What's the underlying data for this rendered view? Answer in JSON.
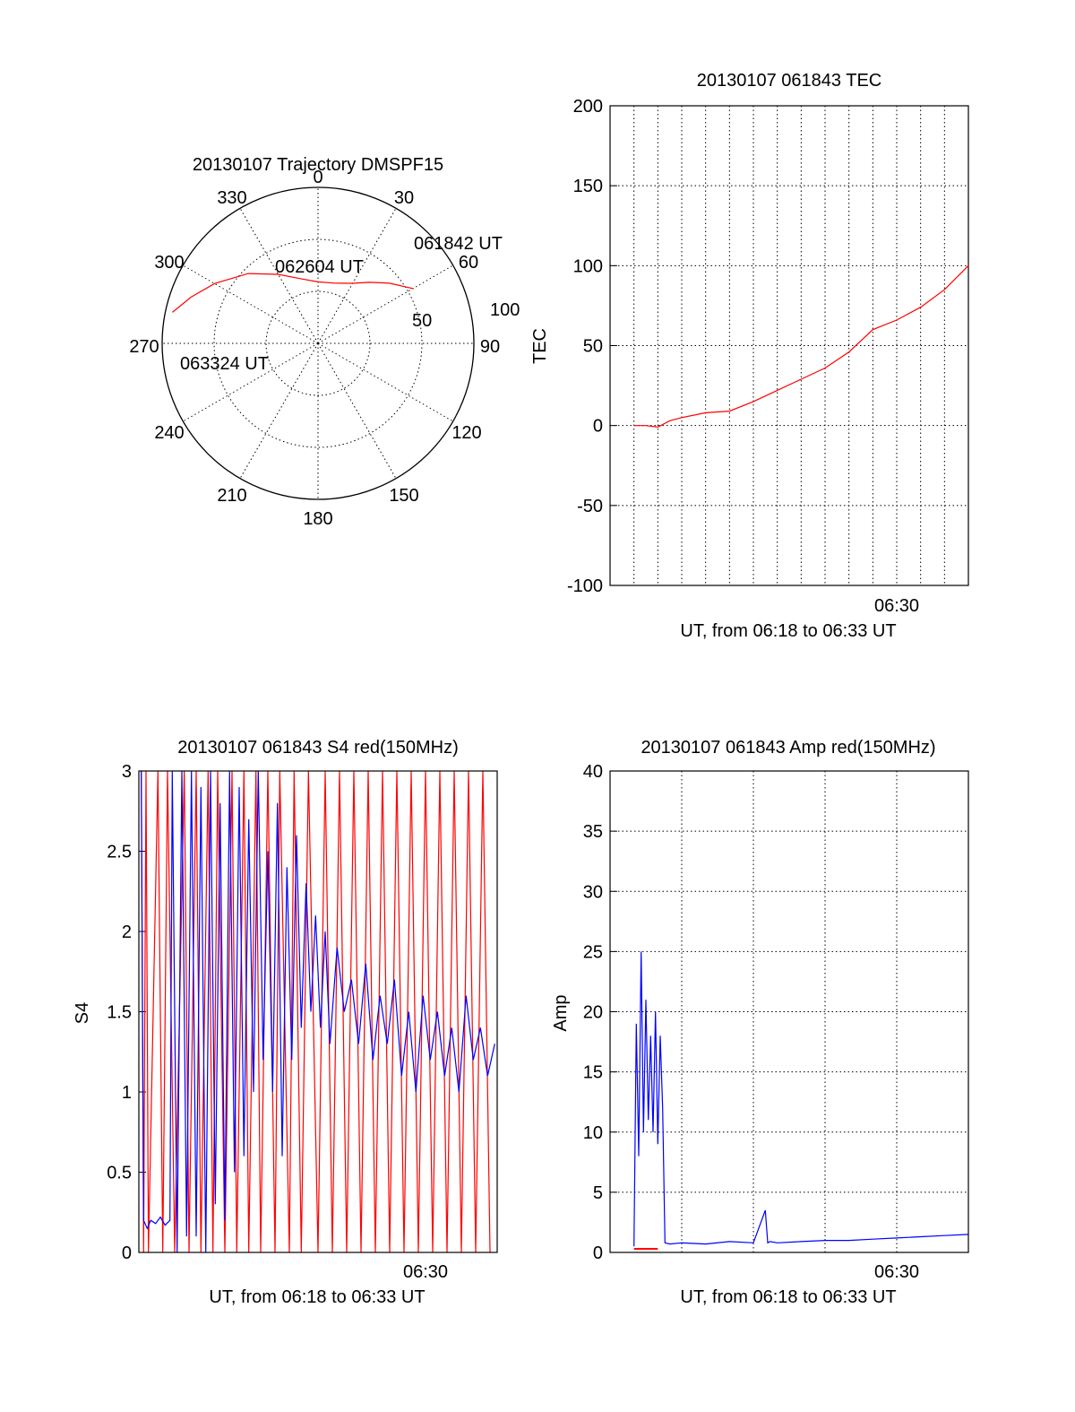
{
  "colors": {
    "trace_red": "#ff0000",
    "trace_blue": "#0000ff",
    "axis": "#000000",
    "grid": "#000000"
  },
  "chart_data": [
    {
      "type": "polar",
      "title": "20130107 Trajectory DMSPF15",
      "angle_labels": [
        "0",
        "30",
        "60",
        "90",
        "120",
        "150",
        "180",
        "210",
        "240",
        "270",
        "300",
        "330"
      ],
      "radial_labels": [
        "50",
        "100"
      ],
      "elevation_rings": [
        30,
        60,
        90
      ],
      "grid": true,
      "trajectory": {
        "color": "red",
        "points": [
          {
            "az": 60.3,
            "el": 26.4
          },
          {
            "az": 50.0,
            "el": 36.0
          },
          {
            "az": 40.0,
            "el": 44.0
          },
          {
            "az": 30.0,
            "el": 50.0
          },
          {
            "az": 15.0,
            "el": 54.0
          },
          {
            "az": 0.0,
            "el": 54.5
          },
          {
            "az": -14.0,
            "el": 51.7
          },
          {
            "az": -30.0,
            "el": 44.0
          },
          {
            "az": -45.0,
            "el": 33.0
          },
          {
            "az": -60.0,
            "el": 21.0
          },
          {
            "az": -70.0,
            "el": 12.0
          },
          {
            "az": -78.0,
            "el": 4.0
          }
        ],
        "markers": [
          {
            "label": "061842 UT",
            "az": 60.3,
            "el": 26.4
          },
          {
            "label": "062604 UT",
            "az": -14.0,
            "el": 51.7
          },
          {
            "label": "063324 UT",
            "az": -78.0,
            "el": 4.0
          }
        ]
      }
    },
    {
      "type": "line",
      "title": "20130107 061843 TEC",
      "xlabel": "UT, from 06:18 to 06:33 UT",
      "ylabel": "TEC",
      "x_tick_labels": [
        "06:30"
      ],
      "y_tick_labels": [
        "200",
        "150",
        "100",
        "50",
        "0",
        "-50",
        "-100"
      ],
      "xlim": [
        0,
        15
      ],
      "ylim": [
        -100,
        200
      ],
      "grid": true,
      "series": [
        {
          "color": "red",
          "x": [
            1.0,
            1.5,
            2.0,
            2.5,
            3.0,
            4.0,
            5.0,
            6.0,
            7.0,
            8.0,
            9.0,
            10.0,
            11.0,
            12.0,
            13.0,
            14.0,
            15.0
          ],
          "y": [
            0,
            0,
            -1,
            3,
            5,
            8,
            9,
            15,
            22,
            29,
            36,
            46,
            60,
            66,
            74,
            85,
            100
          ]
        }
      ]
    },
    {
      "type": "line",
      "title": "20130107 061843 S4 red(150MHz)",
      "xlabel": "UT, from 06:18 to 06:33 UT",
      "ylabel": "S4",
      "x_tick_labels": [
        "06:30"
      ],
      "y_tick_labels": [
        "3",
        "2.5",
        "2",
        "1.5",
        "1",
        "0.5",
        "0"
      ],
      "xlim": [
        0,
        15
      ],
      "ylim": [
        0,
        3
      ],
      "grid": false,
      "series": [
        {
          "color": "red",
          "x": [
            0.1,
            0.2,
            0.3,
            0.4,
            0.8,
            1.0,
            1.2,
            1.5,
            1.9,
            2.1,
            2.4,
            2.6,
            2.9,
            3.1,
            3.3,
            3.6,
            3.9,
            4.1,
            4.4,
            4.6,
            4.9,
            5.1,
            5.4,
            5.7,
            5.9,
            6.3,
            6.5,
            6.8,
            7.1,
            7.5,
            7.8,
            8.1,
            8.4,
            8.7,
            9.0,
            9.3,
            9.6,
            9.9,
            10.2,
            10.5,
            10.8,
            11.1,
            11.4,
            11.7,
            12.0,
            12.3,
            12.6,
            12.9,
            13.2,
            13.5,
            13.8,
            14.1,
            14.4,
            14.7
          ],
          "y": [
            3,
            0,
            3,
            0,
            3,
            0,
            3,
            0,
            3,
            0,
            3,
            0,
            3,
            0,
            3,
            0,
            3,
            0,
            3,
            0,
            3,
            0,
            3,
            0,
            3,
            0,
            3,
            0,
            3,
            0,
            3,
            0,
            3,
            0,
            3,
            0,
            3,
            0,
            3,
            0,
            3,
            0,
            3,
            0,
            3,
            0,
            3,
            0,
            3,
            0,
            3,
            0,
            3,
            0
          ]
        },
        {
          "color": "blue",
          "x": [
            0.1,
            0.2,
            0.35,
            0.5,
            0.7,
            0.9,
            1.1,
            1.3,
            1.4,
            1.6,
            1.8,
            2.0,
            2.2,
            2.4,
            2.6,
            2.8,
            3.0,
            3.2,
            3.4,
            3.6,
            3.8,
            4.0,
            4.2,
            4.4,
            4.6,
            4.8,
            5.0,
            5.2,
            5.4,
            5.6,
            5.8,
            6.0,
            6.2,
            6.4,
            6.6,
            6.8,
            7.0,
            7.2,
            7.4,
            7.6,
            7.8,
            8.0,
            8.3,
            8.6,
            8.9,
            9.2,
            9.5,
            9.8,
            10.1,
            10.4,
            10.7,
            11.0,
            11.3,
            11.6,
            11.9,
            12.2,
            12.5,
            12.8,
            13.1,
            13.4,
            13.7,
            14.0,
            14.3,
            14.6,
            14.9
          ],
          "y": [
            3,
            0.2,
            0.15,
            0.2,
            0.18,
            0.22,
            0.17,
            0.2,
            3,
            0,
            3,
            0.1,
            3,
            0.1,
            2.9,
            0,
            3,
            0.3,
            2.8,
            0.2,
            3,
            0.5,
            2.9,
            0.6,
            2.7,
            1,
            3,
            1.2,
            2.5,
            1,
            2.8,
            0.6,
            2.4,
            1.2,
            2.6,
            1.4,
            2.3,
            1.5,
            2.1,
            1.4,
            2.0,
            1.3,
            1.9,
            1.5,
            1.7,
            1.3,
            1.8,
            1.2,
            1.6,
            1.3,
            1.7,
            1.1,
            1.5,
            1.0,
            1.6,
            1.2,
            1.5,
            1.1,
            1.4,
            1.0,
            1.6,
            1.2,
            1.4,
            1.1,
            1.3
          ]
        }
      ]
    },
    {
      "type": "line",
      "title": "20130107 061843 Amp red(150MHz)",
      "xlabel": "UT, from 06:18 to 06:33 UT",
      "ylabel": "Amp",
      "x_tick_labels": [
        "06:30"
      ],
      "y_tick_labels": [
        "40",
        "35",
        "30",
        "25",
        "20",
        "15",
        "10",
        "5",
        "0"
      ],
      "xlim": [
        0,
        15
      ],
      "ylim": [
        0,
        40
      ],
      "grid": true,
      "series": [
        {
          "color": "red",
          "x": [
            1.0,
            1.5,
            2.0
          ],
          "y": [
            0.3,
            0.3,
            0.3
          ]
        },
        {
          "color": "blue",
          "x": [
            1.0,
            1.1,
            1.2,
            1.3,
            1.4,
            1.5,
            1.6,
            1.7,
            1.8,
            1.9,
            2.0,
            2.1,
            2.2,
            2.3,
            2.5,
            3.0,
            4.0,
            5.0,
            6.0,
            6.5,
            6.6,
            6.7,
            7.0,
            8.0,
            9.0,
            10.0,
            11.0,
            12.0,
            13.0,
            14.0,
            15.0
          ],
          "y": [
            0.5,
            19,
            8,
            25,
            10,
            21,
            11,
            18,
            10,
            20,
            9,
            18,
            12,
            0.8,
            0.7,
            0.8,
            0.7,
            0.9,
            0.8,
            3.5,
            0.8,
            0.9,
            0.8,
            0.9,
            1.0,
            1.0,
            1.1,
            1.2,
            1.3,
            1.4,
            1.5
          ]
        }
      ]
    }
  ]
}
